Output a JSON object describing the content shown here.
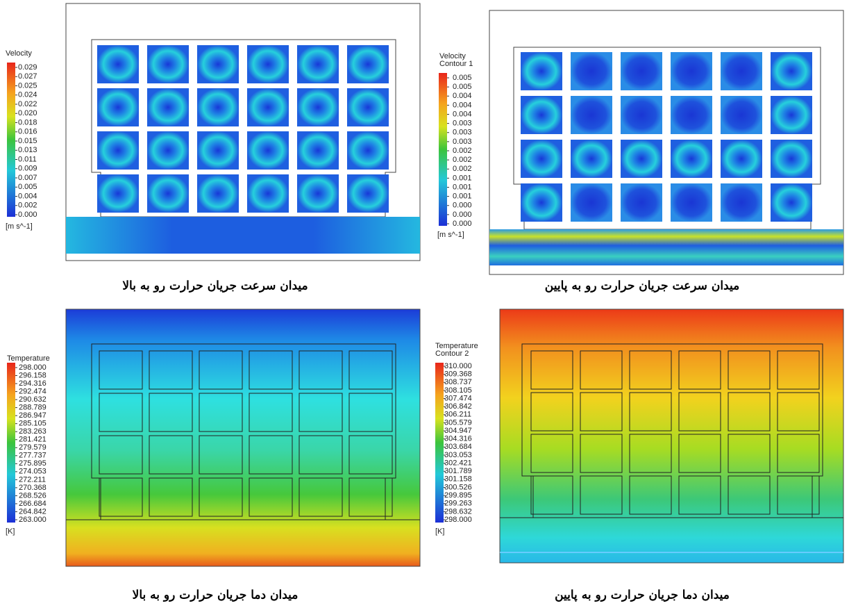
{
  "panels": [
    {
      "legend": {
        "title": "Velocity",
        "labels": [
          "0.029",
          "0.027",
          "0.025",
          "0.024",
          "0.022",
          "0.020",
          "0.018",
          "0.016",
          "0.015",
          "0.013",
          "0.011",
          "0.009",
          "0.007",
          "0.005",
          "0.004",
          "0.002",
          "0.000"
        ],
        "unit": "[m s^-1]"
      },
      "caption": "میدان سرعت جریان حرارت رو به بالا"
    },
    {
      "legend": {
        "title": "Velocity",
        "subtitle": "Contour 1",
        "labels": [
          "0.005",
          "0.005",
          "0.004",
          "0.004",
          "0.004",
          "0.003",
          "0.003",
          "0.003",
          "0.002",
          "0.002",
          "0.002",
          "0.001",
          "0.001",
          "0.001",
          "0.000",
          "0.000",
          "0.000"
        ],
        "unit": "[m s^-1]"
      },
      "caption": "میدان سرعت جریان حرارت رو به پایین"
    },
    {
      "legend": {
        "title": "Temperature",
        "labels": [
          "298.000",
          "296.158",
          "294.316",
          "292.474",
          "290.632",
          "288.789",
          "286.947",
          "285.105",
          "283.263",
          "281.421",
          "279.579",
          "277.737",
          "275.895",
          "274.053",
          "272.211",
          "270.368",
          "268.526",
          "266.684",
          "264.842",
          "263.000"
        ],
        "unit": "[K]"
      },
      "caption": "میدان دما جریان حرارت رو به بالا"
    },
    {
      "legend": {
        "title": "Temperature",
        "subtitle": "Contour 2",
        "labels": [
          "310.000",
          "309.368",
          "308.737",
          "308.105",
          "307.474",
          "306.842",
          "306.211",
          "305.579",
          "304.947",
          "304.316",
          "303.684",
          "303.053",
          "302.421",
          "301.789",
          "301.158",
          "300.526",
          "299.895",
          "299.263",
          "298.632",
          "298.000"
        ],
        "unit": "[K]"
      },
      "caption": "میدان دما جریان حرارت رو به پایین"
    }
  ]
}
